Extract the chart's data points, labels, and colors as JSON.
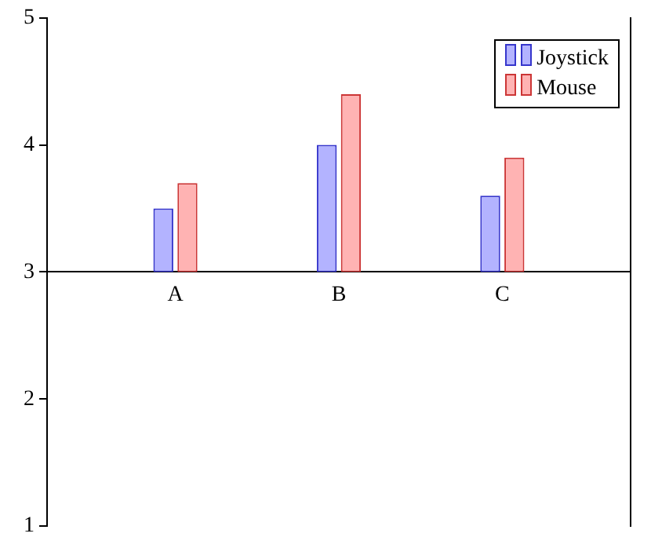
{
  "chart_data": {
    "type": "bar",
    "categories": [
      "A",
      "B",
      "C"
    ],
    "series": [
      {
        "name": "Joystick",
        "color": "#b3b3ff",
        "base": [
          3,
          3,
          3
        ],
        "values": [
          0.5,
          1.0,
          0.6
        ]
      },
      {
        "name": "Mouse",
        "color": "#ffb3b3",
        "base": [
          3,
          3,
          3
        ],
        "values": [
          0.7,
          1.4,
          0.9
        ]
      }
    ],
    "ylim": [
      1,
      5
    ],
    "yticks": [
      1,
      2,
      3,
      4,
      5
    ],
    "grid": false,
    "legend": "top right"
  }
}
